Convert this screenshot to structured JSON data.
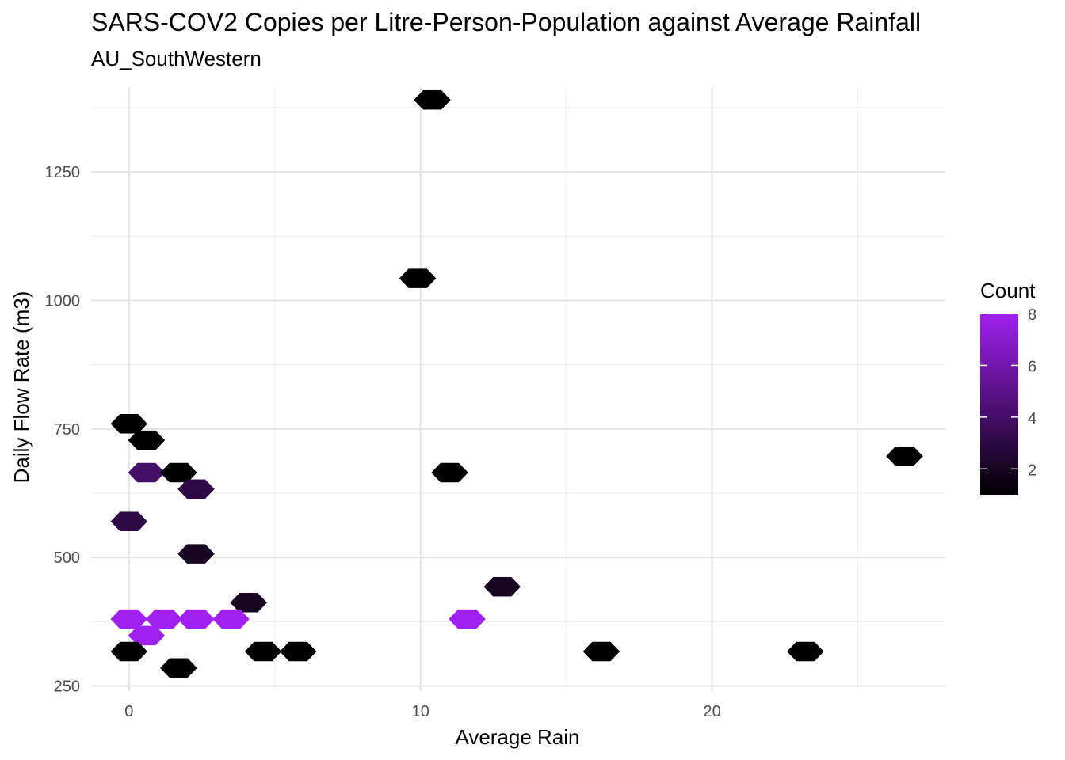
{
  "chart_data": {
    "type": "heatmap",
    "title": "SARS-COV2 Copies per Litre-Person-Population against Average Rainfall",
    "subtitle": "AU_SouthWestern",
    "xlabel": "Average Rain",
    "ylabel": "Daily Flow Rate (m3)",
    "xlim": [
      -1.3,
      28
    ],
    "ylim": [
      240,
      1415
    ],
    "x_ticks": [
      0,
      10,
      20
    ],
    "y_ticks": [
      250,
      500,
      750,
      1000,
      1250
    ],
    "grid": true,
    "legend": {
      "title": "Count",
      "position": "right",
      "ticks": [
        2,
        4,
        6,
        8
      ],
      "range": [
        1,
        8
      ],
      "low_color": "#000000",
      "high_color": "#a020f0"
    },
    "hex_bins": [
      {
        "x": 10.4,
        "y": 1390,
        "count": 1
      },
      {
        "x": 9.9,
        "y": 1043,
        "count": 1
      },
      {
        "x": 0.0,
        "y": 760,
        "count": 1
      },
      {
        "x": 0.6,
        "y": 728,
        "count": 1
      },
      {
        "x": 0.6,
        "y": 665,
        "count": 4
      },
      {
        "x": 1.7,
        "y": 665,
        "count": 1
      },
      {
        "x": 2.3,
        "y": 633,
        "count": 3
      },
      {
        "x": 0.0,
        "y": 570,
        "count": 3
      },
      {
        "x": 2.3,
        "y": 507,
        "count": 2
      },
      {
        "x": 4.1,
        "y": 412,
        "count": 2
      },
      {
        "x": 0.0,
        "y": 380,
        "count": 8
      },
      {
        "x": 1.2,
        "y": 380,
        "count": 8
      },
      {
        "x": 2.3,
        "y": 380,
        "count": 8
      },
      {
        "x": 3.5,
        "y": 380,
        "count": 8
      },
      {
        "x": 0.6,
        "y": 348,
        "count": 8
      },
      {
        "x": 0.0,
        "y": 317,
        "count": 1
      },
      {
        "x": 4.6,
        "y": 317,
        "count": 1
      },
      {
        "x": 5.8,
        "y": 317,
        "count": 1
      },
      {
        "x": 1.7,
        "y": 285,
        "count": 1
      },
      {
        "x": 11.0,
        "y": 665,
        "count": 1
      },
      {
        "x": 12.8,
        "y": 443,
        "count": 2
      },
      {
        "x": 11.6,
        "y": 380,
        "count": 8
      },
      {
        "x": 16.2,
        "y": 317,
        "count": 1
      },
      {
        "x": 23.2,
        "y": 317,
        "count": 1
      },
      {
        "x": 26.6,
        "y": 697,
        "count": 1
      }
    ]
  }
}
